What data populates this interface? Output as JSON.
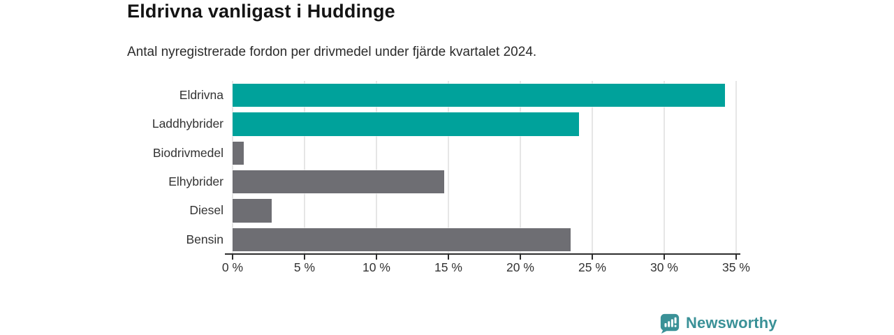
{
  "header": {
    "title": "Eldrivna vanligast i Huddinge",
    "subtitle": "Antal nyregistrerade fordon per drivmedel under fjärde kvartalet 2024."
  },
  "chart_data": {
    "type": "bar",
    "orientation": "horizontal",
    "title": "Eldrivna vanligast i Huddinge",
    "subtitle": "Antal nyregistrerade fordon per drivmedel under fjärde kvartalet 2024.",
    "categories": [
      "Eldrivna",
      "Laddhybrider",
      "Biodrivmedel",
      "Elhybrider",
      "Diesel",
      "Bensin"
    ],
    "values": [
      34.2,
      24.1,
      0.8,
      14.7,
      2.7,
      23.5
    ],
    "value_unit": "%",
    "highlighted": [
      true,
      true,
      false,
      false,
      false,
      false
    ],
    "colors": {
      "highlight": "#00a29b",
      "default": "#6e6e73",
      "gridline": "#e6e6e6",
      "axis": "#2d2d2d",
      "label": "#333333"
    },
    "xlim": [
      0,
      35
    ],
    "xticks": [
      0,
      5,
      10,
      15,
      20,
      25,
      30,
      35
    ],
    "tick_suffix": " %",
    "grid": true,
    "legend_position": "none",
    "xlabel": "",
    "ylabel": ""
  },
  "footer": {
    "brand": "Newsworthy",
    "brand_color": "#3a9197",
    "logo_icon": "newsworthy-pin-barchart-icon"
  }
}
